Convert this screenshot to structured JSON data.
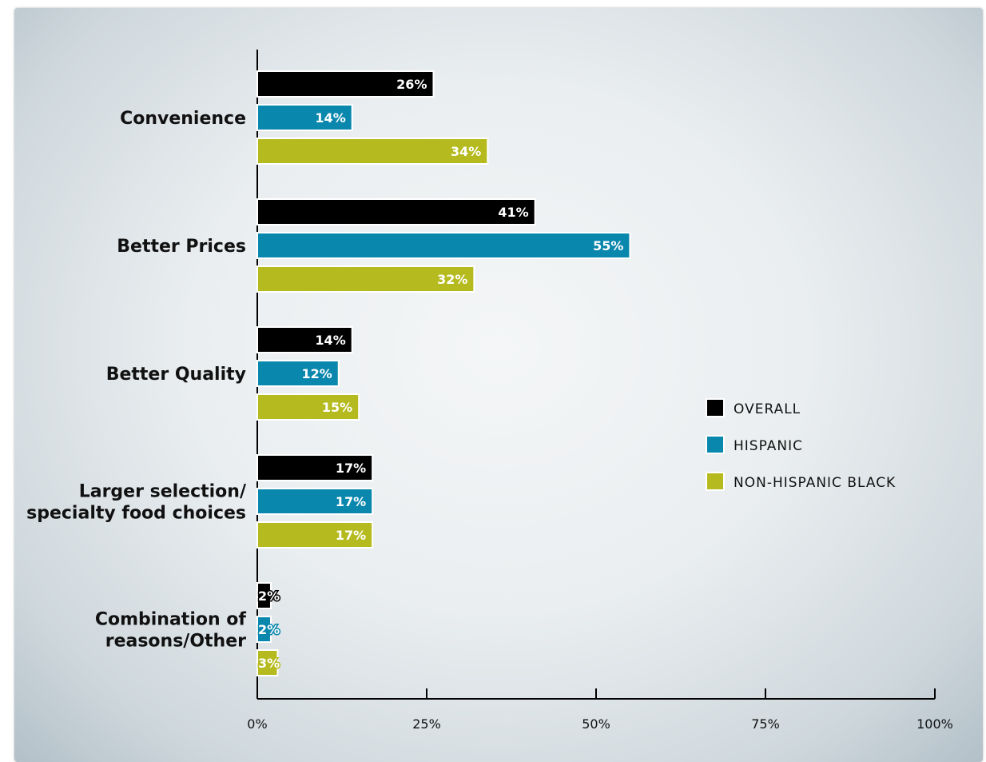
{
  "chart_data": {
    "type": "bar",
    "orientation": "horizontal",
    "categories": [
      [
        "Convenience"
      ],
      [
        "Better Prices"
      ],
      [
        "Better Quality"
      ],
      [
        "Larger selection/",
        "specialty food choices"
      ],
      [
        "Combination of",
        "reasons/Other"
      ]
    ],
    "series": [
      {
        "name": "OVERALL",
        "color": "#000000",
        "values": [
          26,
          41,
          14,
          17,
          2
        ],
        "labels": [
          "26%",
          "41%",
          "14%",
          "17%",
          "2%"
        ]
      },
      {
        "name": "HISPANIC",
        "color": "#0a87ad",
        "values": [
          14,
          55,
          12,
          17,
          2
        ],
        "labels": [
          "14%",
          "55%",
          "12%",
          "17%",
          "2%"
        ]
      },
      {
        "name": "NON-HISPANIC BLACK",
        "color": "#b5bb1e",
        "values": [
          34,
          32,
          15,
          17,
          3
        ],
        "labels": [
          "34%",
          "32%",
          "15%",
          "17%",
          "3%"
        ]
      }
    ],
    "xlim": [
      0,
      100
    ],
    "xticks": [
      0,
      25,
      50,
      75,
      100
    ],
    "xtick_labels": [
      "0%",
      "25%",
      "50%",
      "75%",
      "100%"
    ],
    "title": "",
    "xlabel": "",
    "ylabel": "",
    "grid": false,
    "legend_position": "right"
  }
}
